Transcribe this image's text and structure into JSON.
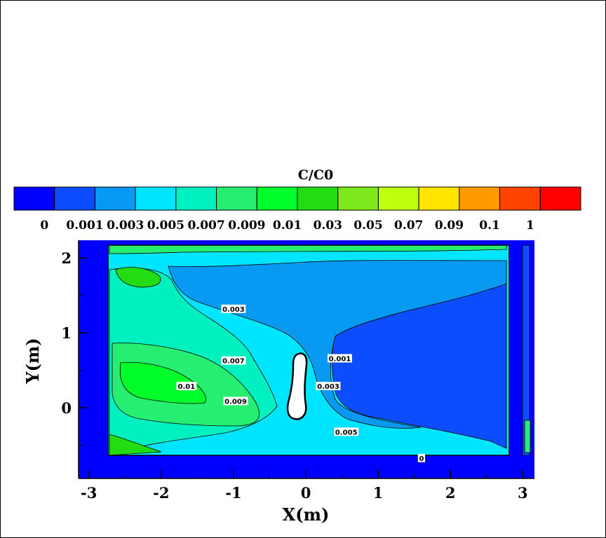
{
  "chart_data": {
    "type": "heatmap",
    "title": "",
    "xlabel": "X(m)",
    "ylabel": "Y(m)",
    "xlim": [
      -3.15,
      3.15
    ],
    "ylim": [
      -0.95,
      2.2
    ],
    "x_ticks": [
      "-3",
      "-2",
      "-1",
      "0",
      "1",
      "2",
      "3"
    ],
    "y_ticks": [
      "2",
      "1",
      "0"
    ],
    "colorbar": {
      "title": "C/C0",
      "levels": [
        "0",
        "0.001",
        "0.003",
        "0.005",
        "0.007",
        "0.009",
        "0.01",
        "0.03",
        "0.05",
        "0.07",
        "0.09",
        "0.1",
        "1"
      ],
      "colors": [
        "#0000ff",
        "#0b4dff",
        "#0899f2",
        "#00e5ff",
        "#00f0c0",
        "#26ee70",
        "#00ff2a",
        "#22dd11",
        "#7de81c",
        "#bdff0f",
        "#ffe600",
        "#ff9a00",
        "#ff4400",
        "#ff0000"
      ]
    },
    "contour_labels": [
      {
        "text": "0.003",
        "x": -1.0,
        "y": 1.31
      },
      {
        "text": "0.007",
        "x": -1.0,
        "y": 0.62
      },
      {
        "text": "0.01",
        "x": -1.65,
        "y": 0.28
      },
      {
        "text": "0.009",
        "x": -0.97,
        "y": 0.08
      },
      {
        "text": "0.001",
        "x": 0.47,
        "y": 0.65
      },
      {
        "text": "0.003",
        "x": 0.31,
        "y": 0.28
      },
      {
        "text": "0.005",
        "x": 0.56,
        "y": -0.33
      },
      {
        "text": "0",
        "x": 1.6,
        "y": -0.68
      }
    ]
  }
}
